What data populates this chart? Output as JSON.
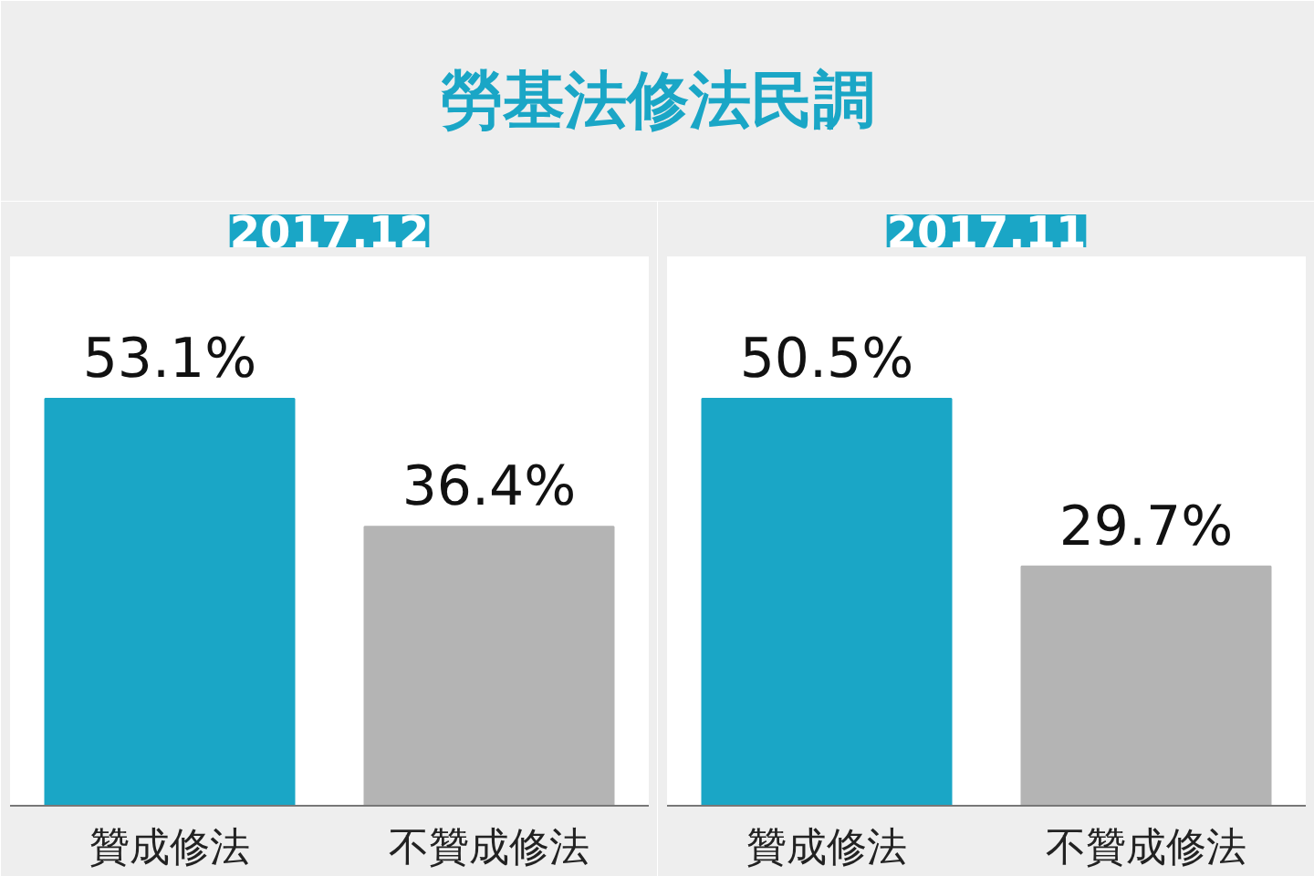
{
  "chart_data": [
    {
      "type": "other",
      "title": "勞基法修法民調"
    },
    {
      "type": "bar",
      "title": "2017.12",
      "categories": [
        "贊成修法",
        "不贊成修法"
      ],
      "values": [
        53.1,
        36.4
      ],
      "colors": [
        "#1aa6c6",
        "#b4b4b4"
      ],
      "value_labels": [
        "53.1%",
        "36.4%"
      ]
    },
    {
      "type": "bar",
      "title": "2017.11",
      "categories": [
        "贊成修法",
        "不贊成修法"
      ],
      "values": [
        50.5,
        29.7
      ],
      "colors": [
        "#1aa6c6",
        "#b4b4b4"
      ],
      "value_labels": [
        "50.5%",
        "29.7%"
      ]
    }
  ]
}
